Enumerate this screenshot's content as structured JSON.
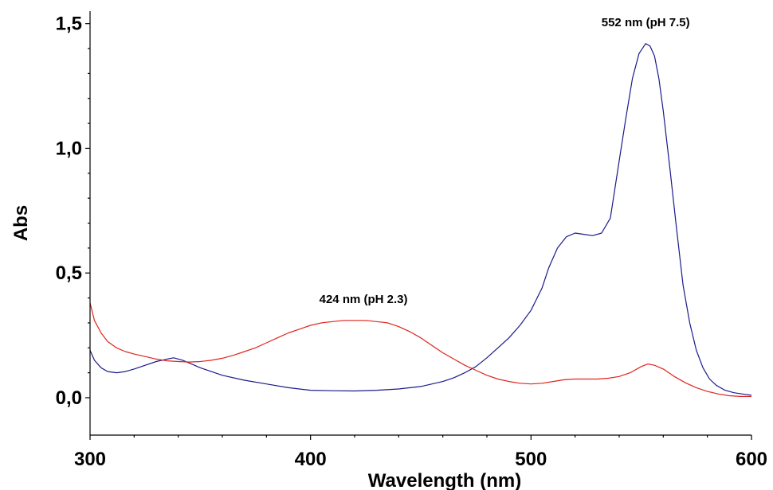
{
  "chart_data": {
    "type": "line",
    "title": "",
    "xlabel": "Wavelength (nm)",
    "ylabel": "Abs",
    "xlim": [
      300,
      600
    ],
    "ylim": [
      -0.15,
      1.55
    ],
    "x_ticks": [
      300,
      400,
      500,
      600
    ],
    "x_tick_labels": [
      "300",
      "400",
      "500",
      "600"
    ],
    "y_ticks": [
      0.0,
      0.5,
      1.0,
      1.5
    ],
    "y_tick_labels": [
      "0,0",
      "0,5",
      "1,0",
      "1,5"
    ],
    "grid": false,
    "legend": "none",
    "series": [
      {
        "color": "#1a1a8c",
        "x": [
          300,
          302,
          305,
          308,
          312,
          316,
          320,
          325,
          330,
          335,
          338,
          342,
          346,
          350,
          355,
          360,
          370,
          380,
          390,
          400,
          410,
          420,
          430,
          440,
          450,
          460,
          465,
          470,
          475,
          480,
          485,
          490,
          495,
          500,
          505,
          508,
          512,
          516,
          520,
          524,
          528,
          532,
          536,
          540,
          543,
          546,
          549,
          552,
          554,
          556,
          558,
          560,
          563,
          566,
          569,
          572,
          575,
          578,
          581,
          584,
          588,
          592,
          596,
          600
        ],
        "y": [
          0.19,
          0.15,
          0.12,
          0.105,
          0.1,
          0.105,
          0.115,
          0.13,
          0.145,
          0.155,
          0.16,
          0.15,
          0.135,
          0.12,
          0.105,
          0.09,
          0.07,
          0.055,
          0.04,
          0.03,
          0.028,
          0.027,
          0.03,
          0.035,
          0.045,
          0.065,
          0.08,
          0.1,
          0.125,
          0.16,
          0.2,
          0.24,
          0.29,
          0.35,
          0.44,
          0.52,
          0.6,
          0.645,
          0.66,
          0.655,
          0.65,
          0.66,
          0.72,
          0.95,
          1.12,
          1.28,
          1.38,
          1.42,
          1.41,
          1.37,
          1.28,
          1.15,
          0.92,
          0.68,
          0.45,
          0.3,
          0.19,
          0.12,
          0.075,
          0.05,
          0.03,
          0.02,
          0.015,
          0.01
        ]
      },
      {
        "color": "#e0241c",
        "x": [
          300,
          302,
          305,
          308,
          312,
          316,
          320,
          325,
          330,
          335,
          340,
          345,
          350,
          355,
          360,
          365,
          370,
          375,
          380,
          385,
          390,
          395,
          400,
          405,
          410,
          415,
          420,
          425,
          430,
          435,
          440,
          445,
          450,
          455,
          460,
          465,
          470,
          475,
          480,
          485,
          490,
          495,
          500,
          505,
          510,
          515,
          520,
          525,
          530,
          535,
          540,
          545,
          550,
          553,
          556,
          560,
          565,
          570,
          575,
          580,
          585,
          590,
          595,
          600
        ],
        "y": [
          0.38,
          0.31,
          0.26,
          0.225,
          0.2,
          0.185,
          0.175,
          0.165,
          0.155,
          0.148,
          0.145,
          0.143,
          0.145,
          0.15,
          0.158,
          0.17,
          0.185,
          0.2,
          0.22,
          0.24,
          0.26,
          0.275,
          0.29,
          0.3,
          0.305,
          0.31,
          0.31,
          0.31,
          0.305,
          0.3,
          0.285,
          0.265,
          0.24,
          0.21,
          0.18,
          0.155,
          0.13,
          0.11,
          0.09,
          0.075,
          0.065,
          0.058,
          0.055,
          0.058,
          0.065,
          0.072,
          0.075,
          0.075,
          0.075,
          0.078,
          0.085,
          0.1,
          0.125,
          0.135,
          0.13,
          0.115,
          0.085,
          0.06,
          0.04,
          0.025,
          0.015,
          0.008,
          0.005,
          0.005
        ]
      }
    ],
    "annotations": [
      {
        "text": "552 nm (pH 7.5)",
        "x": 552,
        "y": 1.49
      },
      {
        "text": "424 nm (pH 2.3)",
        "x": 424,
        "y": 0.38
      }
    ]
  }
}
